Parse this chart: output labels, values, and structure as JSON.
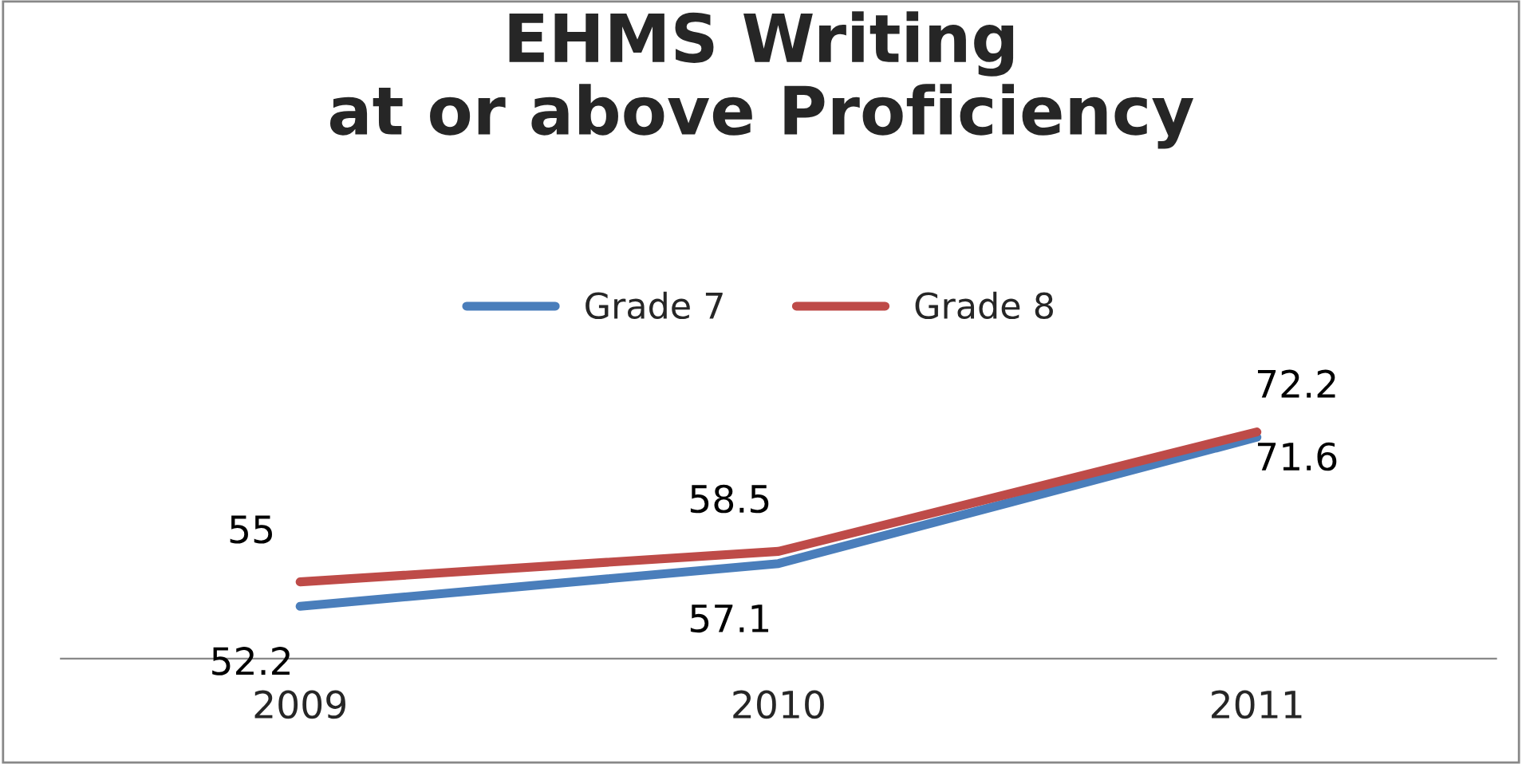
{
  "chart_data": {
    "type": "line",
    "title": "EHMS Writing\nat or above Proficiency",
    "categories": [
      "2009",
      "2010",
      "2011"
    ],
    "series": [
      {
        "name": "Grade 7",
        "color": "#4a7ebb",
        "values": [
          52.2,
          57.1,
          71.6
        ]
      },
      {
        "name": "Grade 8",
        "color": "#be4b48",
        "values": [
          55,
          58.5,
          72.2
        ]
      }
    ],
    "tick_labels": "x",
    "data_labels": true,
    "legend": "top",
    "grid": false,
    "marker": "none",
    "line_style": "solid"
  }
}
